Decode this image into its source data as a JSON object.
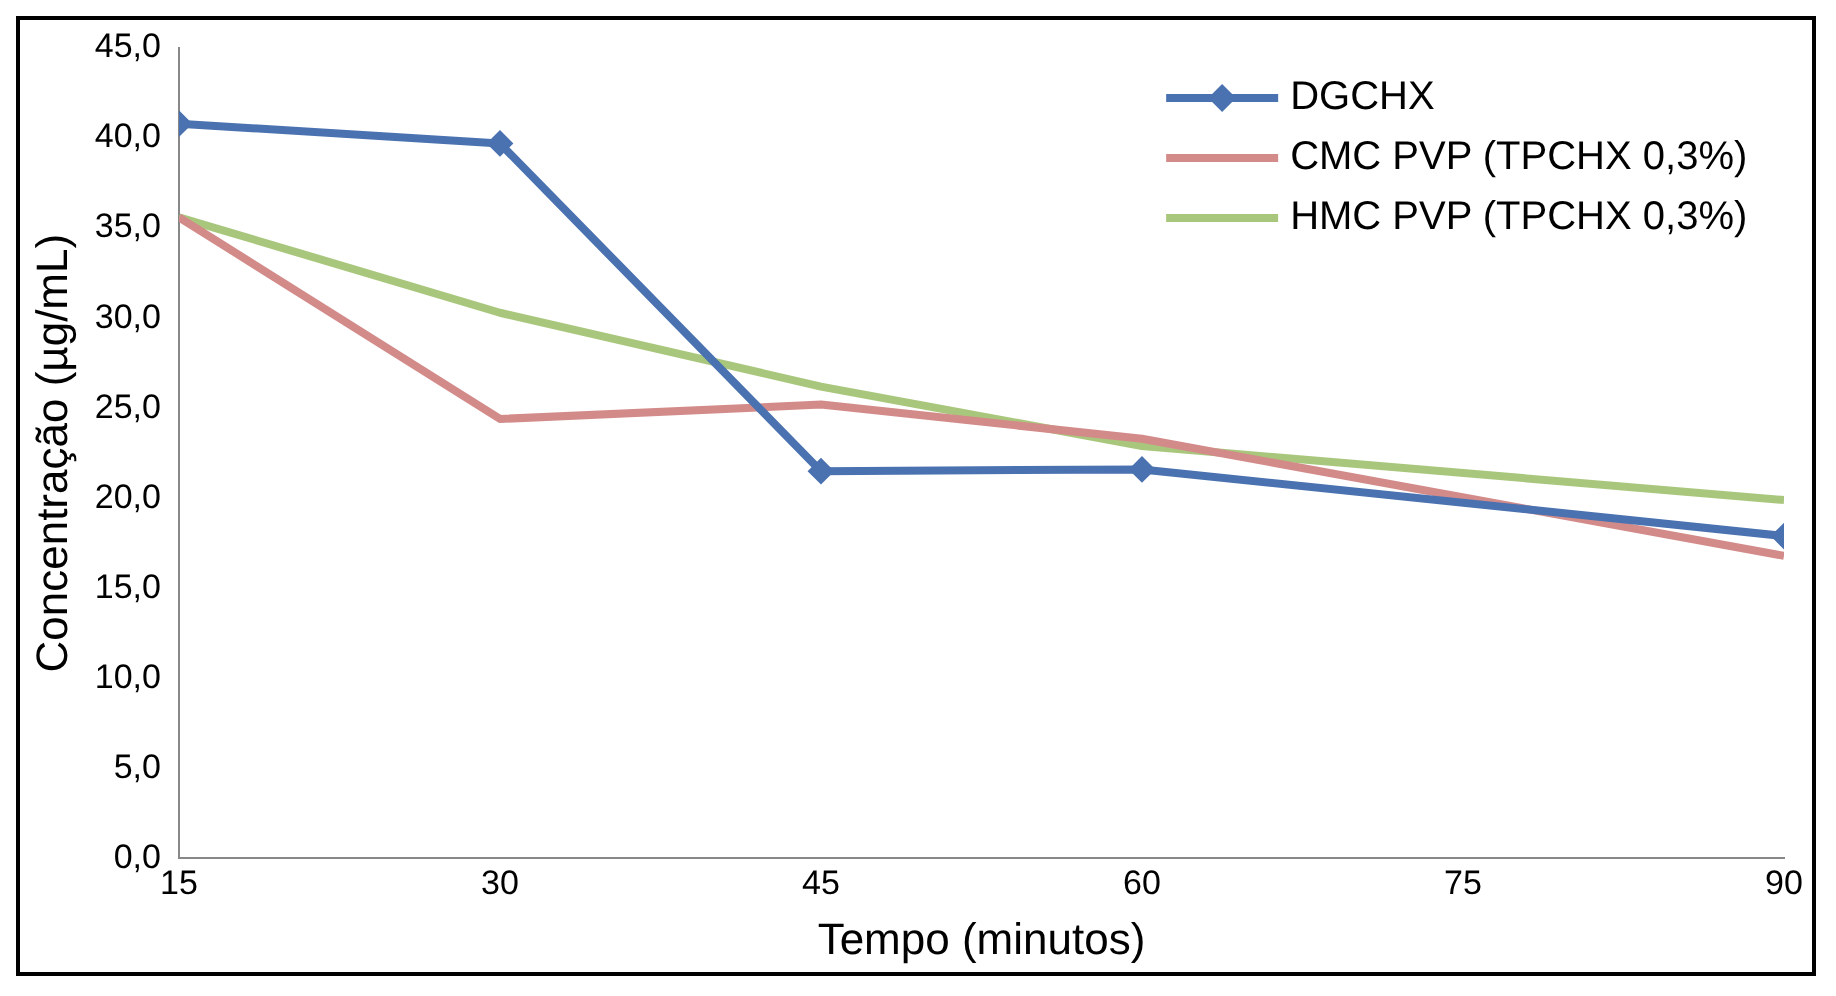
{
  "chart_data": {
    "type": "line",
    "xlabel": "Tempo (minutos)",
    "ylabel": "Concentração (µg/mL)",
    "xlim": [
      15,
      90
    ],
    "xticks": [
      15,
      30,
      45,
      60,
      75,
      90
    ],
    "ylim": [
      0,
      45
    ],
    "yticks": [
      {
        "value": 0,
        "label": "0,0"
      },
      {
        "value": 5,
        "label": "5,0"
      },
      {
        "value": 10,
        "label": "10,0"
      },
      {
        "value": 15,
        "label": "15,0"
      },
      {
        "value": 20,
        "label": "20,0"
      },
      {
        "value": 25,
        "label": "25,0"
      },
      {
        "value": 30,
        "label": "30,0"
      },
      {
        "value": 35,
        "label": "35,0"
      },
      {
        "value": 40,
        "label": "40,0"
      },
      {
        "value": 45,
        "label": "45,0"
      }
    ],
    "grid": false,
    "legend": "top right",
    "series": [
      {
        "name": "DGCHX",
        "color": "#4a72b0",
        "marker": "diamond",
        "x": [
          15,
          30,
          45,
          60,
          90
        ],
        "values": [
          40.8,
          39.7,
          21.5,
          21.6,
          17.9
        ]
      },
      {
        "name": "CMC PVP (TPCHX 0,3%)",
        "color": "#d38b8a",
        "marker": "none",
        "x": [
          15,
          30,
          45,
          60,
          90
        ],
        "values": [
          35.6,
          24.4,
          25.2,
          23.3,
          16.8
        ]
      },
      {
        "name": "HMC PVP (TPCHX 0,3%)",
        "color": "#a9c77c",
        "marker": "none",
        "x": [
          15,
          30,
          45,
          60,
          90
        ],
        "values": [
          35.6,
          30.3,
          26.2,
          22.9,
          19.9
        ]
      }
    ]
  }
}
